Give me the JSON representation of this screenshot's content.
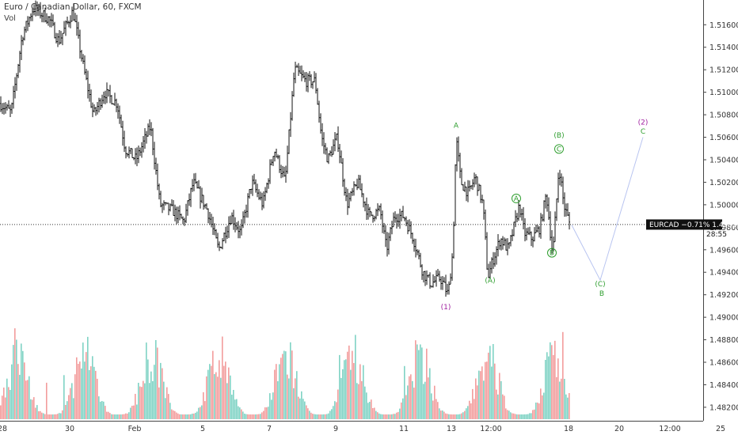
{
  "header": {
    "symbol_line": "Euro / Canadian Dollar, 60, FXCM",
    "vol_label": "Vol"
  },
  "price_tag": {
    "text": "EURCAD −0.71%  1.49824",
    "countdown": "28:55"
  },
  "colors": {
    "up_volume": "#7fd3c4",
    "down_volume": "#f29c9c",
    "bar": "#111111",
    "wave_green": "#2e9e2e",
    "wave_purple": "#a020a0",
    "projection": "#b8c4f0"
  },
  "chart_data": {
    "type": "bar",
    "symbol": "EURCAD",
    "timeframe": "60",
    "source": "FXCM",
    "ylim": [
      1.4808,
      1.5182
    ],
    "last_price": 1.49824,
    "change_percent": "−0.71%",
    "y_ticks": [
      "1.51600",
      "1.51400",
      "1.51200",
      "1.51000",
      "1.50800",
      "1.50600",
      "1.50400",
      "1.50200",
      "1.50000",
      "1.49800",
      "1.49600",
      "1.49400",
      "1.49200",
      "1.49000",
      "1.48800",
      "1.48600",
      "1.48400",
      "1.48200"
    ],
    "x_ticks": [
      "28",
      "30",
      "Feb",
      "5",
      "7",
      "9",
      "11",
      "13",
      "12:00",
      "18",
      "20",
      "12:00",
      "25"
    ],
    "path_key_points": [
      {
        "x": 0,
        "price": 1.509
      },
      {
        "x": 14,
        "price": 1.5082
      },
      {
        "x": 28,
        "price": 1.515
      },
      {
        "x": 42,
        "price": 1.5175
      },
      {
        "x": 62,
        "price": 1.5165
      },
      {
        "x": 74,
        "price": 1.5145
      },
      {
        "x": 92,
        "price": 1.5172
      },
      {
        "x": 106,
        "price": 1.512
      },
      {
        "x": 118,
        "price": 1.508
      },
      {
        "x": 132,
        "price": 1.51
      },
      {
        "x": 148,
        "price": 1.509
      },
      {
        "x": 158,
        "price": 1.505
      },
      {
        "x": 172,
        "price": 1.504
      },
      {
        "x": 190,
        "price": 1.507
      },
      {
        "x": 202,
        "price": 1.5
      },
      {
        "x": 218,
        "price": 1.4995
      },
      {
        "x": 232,
        "price": 1.4985
      },
      {
        "x": 244,
        "price": 1.502
      },
      {
        "x": 262,
        "price": 1.4995
      },
      {
        "x": 276,
        "price": 1.496
      },
      {
        "x": 292,
        "price": 1.499
      },
      {
        "x": 304,
        "price": 1.4975
      },
      {
        "x": 318,
        "price": 1.502
      },
      {
        "x": 332,
        "price": 1.5
      },
      {
        "x": 346,
        "price": 1.505
      },
      {
        "x": 360,
        "price": 1.502
      },
      {
        "x": 372,
        "price": 1.512
      },
      {
        "x": 386,
        "price": 1.511
      },
      {
        "x": 398,
        "price": 1.511
      },
      {
        "x": 406,
        "price": 1.506
      },
      {
        "x": 414,
        "price": 1.504
      },
      {
        "x": 426,
        "price": 1.506
      },
      {
        "x": 438,
        "price": 1.5
      },
      {
        "x": 452,
        "price": 1.502
      },
      {
        "x": 466,
        "price": 1.499
      },
      {
        "x": 480,
        "price": 1.4995
      },
      {
        "x": 488,
        "price": 1.496
      },
      {
        "x": 498,
        "price": 1.499
      },
      {
        "x": 510,
        "price": 1.499
      },
      {
        "x": 522,
        "price": 1.497
      },
      {
        "x": 534,
        "price": 1.494
      },
      {
        "x": 544,
        "price": 1.493
      },
      {
        "x": 556,
        "price": 1.4935
      },
      {
        "x": 566,
        "price": 1.492
      },
      {
        "x": 572,
        "price": 1.496
      },
      {
        "x": 576,
        "price": 1.506
      },
      {
        "x": 582,
        "price": 1.502
      },
      {
        "x": 592,
        "price": 1.501
      },
      {
        "x": 600,
        "price": 1.5025
      },
      {
        "x": 610,
        "price": 1.5
      },
      {
        "x": 616,
        "price": 1.4935
      },
      {
        "x": 622,
        "price": 1.495
      },
      {
        "x": 632,
        "price": 1.497
      },
      {
        "x": 642,
        "price": 1.496
      },
      {
        "x": 656,
        "price": 1.5
      },
      {
        "x": 662,
        "price": 1.4975
      },
      {
        "x": 672,
        "price": 1.497
      },
      {
        "x": 682,
        "price": 1.498
      },
      {
        "x": 690,
        "price": 1.501
      },
      {
        "x": 698,
        "price": 1.4955
      },
      {
        "x": 706,
        "price": 1.5035
      },
      {
        "x": 712,
        "price": 1.5
      },
      {
        "x": 720,
        "price": 1.4982
      }
    ],
    "wave_labels": [
      {
        "text": "(1)",
        "color": "purple",
        "x": 563,
        "price": 1.4907
      },
      {
        "text": "A",
        "color": "green",
        "x": 576,
        "price": 1.50684
      },
      {
        "text": "(A)",
        "color": "green",
        "x": 619,
        "price": 1.49308
      },
      {
        "text": "A",
        "color": "green",
        "circled": true,
        "x": 652,
        "price": 1.50035
      },
      {
        "text": "B",
        "color": "green",
        "circled": true,
        "x": 697,
        "price": 1.49552
      },
      {
        "text": "(B)",
        "color": "green",
        "x": 706,
        "price": 1.50598
      },
      {
        "text": "C",
        "color": "green",
        "circled": true,
        "x": 706,
        "price": 1.50475
      },
      {
        "text": "(C)",
        "color": "green",
        "x": 758,
        "price": 1.49276
      },
      {
        "text": "B",
        "color": "green",
        "x": 760,
        "price": 1.4919
      },
      {
        "text": "(2)",
        "color": "purple",
        "x": 812,
        "price": 1.50712
      },
      {
        "text": "C",
        "color": "green",
        "x": 812,
        "price": 1.50632
      }
    ],
    "projection": [
      {
        "x": 722,
        "price": 1.4982
      },
      {
        "x": 758,
        "price": 1.4933
      },
      {
        "x": 812,
        "price": 1.506
      }
    ]
  }
}
